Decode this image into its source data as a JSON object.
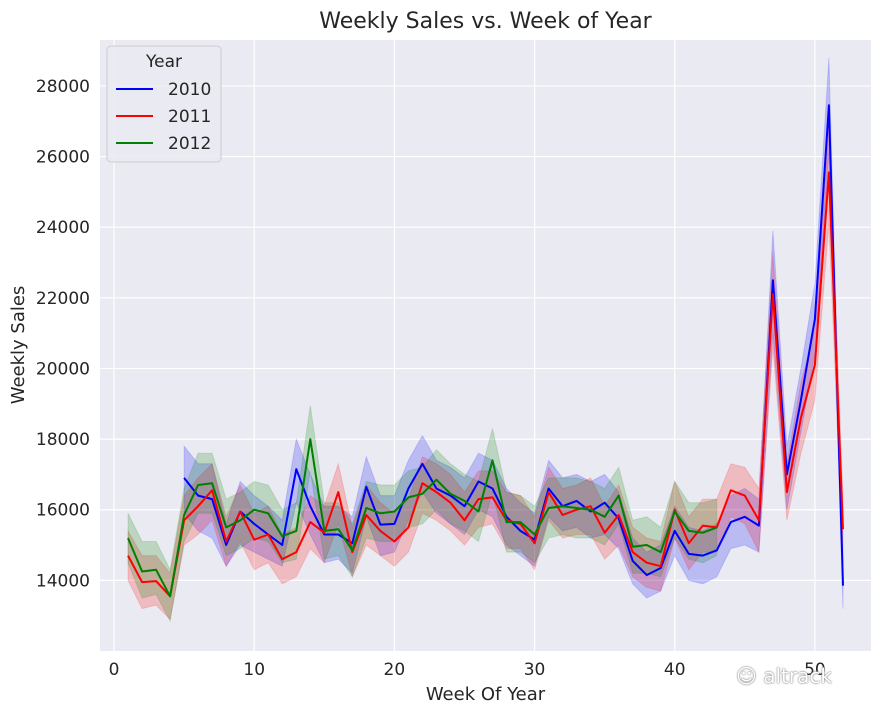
{
  "chart_data": {
    "type": "line",
    "title": "Weekly Sales vs. Week of Year",
    "xlabel": "Week Of Year",
    "ylabel": "Weekly Sales",
    "xlim": [
      -1,
      54
    ],
    "ylim": [
      12000,
      29300
    ],
    "xticks": [
      0,
      10,
      20,
      30,
      40,
      50
    ],
    "yticks": [
      14000,
      16000,
      18000,
      20000,
      22000,
      24000,
      26000,
      28000
    ],
    "grid": true,
    "legend": {
      "title": "Year",
      "placement": "top-left"
    },
    "series": [
      {
        "name": "2010",
        "color": "#0000ff",
        "x": [
          5,
          6,
          7,
          8,
          9,
          10,
          11,
          12,
          13,
          14,
          15,
          16,
          17,
          18,
          19,
          20,
          21,
          22,
          23,
          24,
          25,
          26,
          27,
          28,
          29,
          30,
          31,
          32,
          33,
          34,
          35,
          36,
          37,
          38,
          39,
          40,
          41,
          42,
          43,
          44,
          45,
          46,
          47,
          48,
          49,
          50,
          51,
          52
        ],
        "y": [
          16900,
          16400,
          16300,
          15000,
          15950,
          15600,
          15300,
          15000,
          17150,
          16100,
          15300,
          15300,
          15050,
          16650,
          15580,
          15600,
          16600,
          17300,
          16600,
          16400,
          16100,
          16800,
          16600,
          15800,
          15400,
          15150,
          16600,
          16100,
          16250,
          15950,
          16200,
          15750,
          14550,
          14150,
          14350,
          15400,
          14750,
          14700,
          14850,
          15650,
          15800,
          15550,
          22500,
          17000,
          19100,
          21400,
          27450,
          13850
        ],
        "ci_lo": [
          15900,
          15400,
          15200,
          14400,
          15000,
          14800,
          14600,
          14400,
          16200,
          15300,
          14500,
          14600,
          14200,
          15800,
          14700,
          14800,
          15700,
          16500,
          15900,
          15600,
          15300,
          16000,
          15800,
          15000,
          14700,
          14400,
          15800,
          15400,
          15500,
          15200,
          15300,
          14900,
          13900,
          13500,
          13700,
          14700,
          14000,
          13900,
          14100,
          14900,
          15000,
          14800,
          21000,
          16000,
          18200,
          20400,
          26100,
          13200
        ],
        "ci_hi": [
          17800,
          17300,
          17300,
          15600,
          16800,
          16400,
          16100,
          15700,
          18000,
          17000,
          16100,
          16100,
          15800,
          17500,
          16400,
          16400,
          17400,
          18100,
          17400,
          17200,
          16900,
          17600,
          17400,
          16600,
          16200,
          15900,
          17400,
          16900,
          17000,
          16800,
          17000,
          16500,
          15200,
          14800,
          15000,
          16100,
          15500,
          15400,
          15600,
          16400,
          16600,
          16300,
          23900,
          17800,
          20000,
          22400,
          28800,
          14500
        ]
      },
      {
        "name": "2011",
        "color": "#ff0000",
        "x": [
          1,
          2,
          3,
          4,
          5,
          6,
          7,
          8,
          9,
          10,
          11,
          12,
          13,
          14,
          15,
          16,
          17,
          18,
          19,
          20,
          21,
          22,
          23,
          24,
          25,
          26,
          27,
          28,
          29,
          30,
          31,
          32,
          33,
          34,
          35,
          36,
          37,
          38,
          39,
          40,
          41,
          42,
          43,
          44,
          45,
          46,
          47,
          48,
          49,
          50,
          51,
          52
        ],
        "y": [
          14700,
          13950,
          13980,
          13550,
          15700,
          16100,
          16550,
          15100,
          15950,
          15150,
          15300,
          14600,
          14800,
          15650,
          15350,
          16500,
          14800,
          15850,
          15400,
          15100,
          15500,
          16750,
          16500,
          16200,
          15700,
          16300,
          16350,
          15700,
          15600,
          15050,
          16500,
          15850,
          16000,
          16100,
          15350,
          15850,
          14800,
          14500,
          14400,
          16000,
          15050,
          15550,
          15500,
          16550,
          16400,
          15700,
          22100,
          16500,
          18600,
          20100,
          25550,
          15450
        ],
        "ci_lo": [
          14000,
          13200,
          13300,
          12900,
          15000,
          15300,
          15700,
          14400,
          15100,
          14300,
          14500,
          13900,
          14100,
          14900,
          14500,
          15600,
          14100,
          15000,
          14700,
          14400,
          14800,
          15900,
          15700,
          15400,
          15000,
          15500,
          15600,
          14900,
          14900,
          14300,
          15700,
          15200,
          15300,
          15300,
          14600,
          15000,
          14100,
          13800,
          13700,
          15200,
          14300,
          14800,
          14800,
          15800,
          15600,
          14800,
          20600,
          15700,
          17600,
          19100,
          24100,
          14500
        ],
        "ci_hi": [
          15400,
          14700,
          14700,
          14200,
          16400,
          16900,
          17300,
          15800,
          16700,
          15900,
          16100,
          15300,
          15500,
          16400,
          16100,
          17300,
          15500,
          16700,
          16200,
          15900,
          16300,
          17500,
          17300,
          17000,
          16500,
          17100,
          17100,
          16500,
          16400,
          15800,
          17200,
          16600,
          16700,
          16900,
          16100,
          16700,
          15500,
          15200,
          15100,
          16800,
          15800,
          16300,
          16300,
          17300,
          17200,
          16600,
          23300,
          17300,
          19600,
          21100,
          27000,
          16300
        ]
      },
      {
        "name": "2012",
        "color": "#008000",
        "x": [
          1,
          2,
          3,
          4,
          5,
          6,
          7,
          8,
          9,
          10,
          11,
          12,
          13,
          14,
          15,
          16,
          17,
          18,
          19,
          20,
          21,
          22,
          23,
          24,
          25,
          26,
          27,
          28,
          29,
          30,
          31,
          32,
          33,
          34,
          35,
          36,
          37,
          38,
          39,
          40,
          41,
          42,
          43
        ],
        "y": [
          15200,
          14250,
          14300,
          13550,
          15850,
          16700,
          16750,
          15500,
          15700,
          16000,
          15900,
          15250,
          15400,
          18000,
          15400,
          15450,
          14850,
          16050,
          15900,
          15950,
          16350,
          16450,
          16850,
          16450,
          16250,
          15950,
          17400,
          15650,
          15650,
          15300,
          16050,
          16100,
          16050,
          16000,
          15800,
          16400,
          14950,
          15000,
          14800,
          15950,
          15400,
          15350,
          15500
        ],
        "ci_lo": [
          14500,
          13500,
          13600,
          12850,
          15100,
          15900,
          15900,
          14700,
          14900,
          15200,
          15100,
          14500,
          14600,
          17100,
          14600,
          14700,
          14100,
          15200,
          15100,
          15100,
          15500,
          15600,
          16000,
          15600,
          15400,
          15100,
          16500,
          14800,
          14800,
          14500,
          15200,
          15300,
          15200,
          15200,
          15000,
          15600,
          14200,
          14200,
          14100,
          15200,
          14600,
          14500,
          14700
        ],
        "ci_hi": [
          15900,
          15100,
          15100,
          14300,
          16600,
          17600,
          17600,
          16300,
          16500,
          16800,
          16700,
          16000,
          16200,
          18950,
          16200,
          16200,
          15600,
          16800,
          16700,
          16700,
          17100,
          17200,
          17700,
          17300,
          17000,
          16800,
          18300,
          16500,
          16400,
          16100,
          16900,
          16900,
          16900,
          16800,
          16600,
          17200,
          15700,
          15800,
          15500,
          16800,
          16200,
          16200,
          16300
        ]
      }
    ]
  },
  "watermark": {
    "text": "altrack"
  }
}
